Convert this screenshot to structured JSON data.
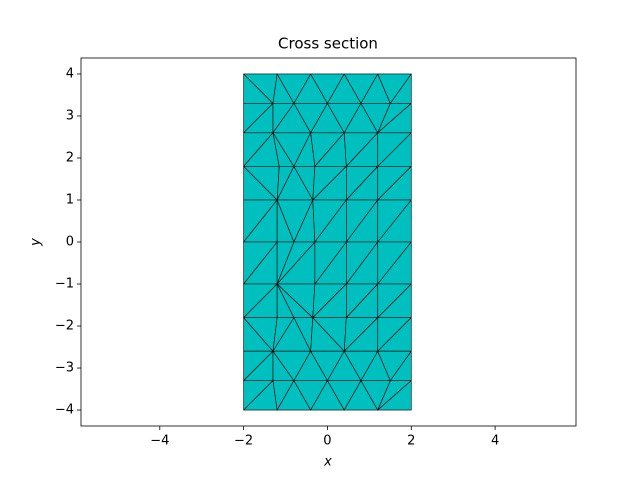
{
  "chart_data": {
    "type": "mesh",
    "title": "Cross section",
    "x_label": "x",
    "y_label": "y",
    "color": "#00bfbf",
    "edge_color": "#000000",
    "xlim": [
      -5.88,
      5.93
    ],
    "ylim": [
      -4.38,
      4.38
    ],
    "xticks": [
      {
        "value": -4,
        "label": "−4"
      },
      {
        "value": -2,
        "label": "−2"
      },
      0,
      2,
      4
    ],
    "yticks": [
      {
        "value": -4,
        "label": "−4"
      },
      {
        "value": -3,
        "label": "−3"
      },
      {
        "value": -2,
        "label": "−2"
      },
      {
        "value": -1,
        "label": "−1"
      },
      0,
      1,
      2,
      3,
      4
    ],
    "rows": [
      {
        "y": 4,
        "x": [
          -2,
          -1.2,
          -0.4,
          0.4,
          1.2,
          2
        ]
      },
      {
        "y": 3.3,
        "x": [
          -2,
          -1.3,
          -0.8,
          0,
          0.8,
          1.5,
          2
        ]
      },
      {
        "y": 2.6,
        "x": [
          -2,
          -1.3,
          -0.4,
          0.4,
          1.2,
          2
        ]
      },
      {
        "y": 1.8,
        "x": [
          -2,
          -1.15,
          -0.8,
          -0.3,
          0.45,
          1.2,
          2
        ]
      },
      {
        "y": 1,
        "x": [
          -2,
          -1.2,
          -0.35,
          0.45,
          1.2,
          2
        ]
      },
      {
        "y": 0,
        "x": [
          -2,
          -1.2,
          -0.8,
          -0.3,
          0.45,
          1.2,
          2
        ]
      },
      {
        "y": -1,
        "x": [
          -2,
          -1.2,
          -0.3,
          0.45,
          1.2,
          2
        ]
      },
      {
        "y": -1.8,
        "x": [
          -2,
          -1.2,
          -0.8,
          -0.35,
          0.45,
          1.2,
          2
        ]
      },
      {
        "y": -2.6,
        "x": [
          -2,
          -1.3,
          -0.4,
          0.4,
          1.2,
          2
        ]
      },
      {
        "y": -3.3,
        "x": [
          -2,
          -1.3,
          -0.8,
          0,
          0.8,
          1.5,
          2
        ]
      },
      {
        "y": -4,
        "x": [
          -2,
          -1.2,
          -0.4,
          0.4,
          1.2,
          2
        ]
      }
    ]
  }
}
